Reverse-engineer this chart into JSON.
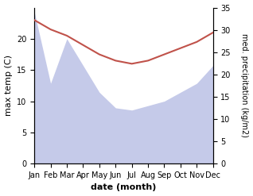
{
  "months": [
    "Jan",
    "Feb",
    "Mar",
    "Apr",
    "May",
    "Jun",
    "Jul",
    "Aug",
    "Sep",
    "Oct",
    "Nov",
    "Dec"
  ],
  "temp": [
    23.0,
    21.5,
    20.5,
    19.0,
    17.5,
    16.5,
    16.0,
    16.5,
    17.5,
    18.5,
    19.5,
    21.0
  ],
  "precip": [
    34.0,
    18.0,
    28.0,
    22.0,
    16.0,
    12.5,
    12.0,
    13.0,
    14.0,
    16.0,
    18.0,
    22.0
  ],
  "temp_color": "#c0524a",
  "precip_color": "#c5cae9",
  "left_ylim": [
    0,
    25
  ],
  "right_ylim": [
    0,
    35
  ],
  "left_yticks": [
    0,
    5,
    10,
    15,
    20
  ],
  "right_yticks": [
    0,
    5,
    10,
    15,
    20,
    25,
    30,
    35
  ],
  "xlabel": "date (month)",
  "ylabel_left": "max temp (C)",
  "ylabel_right": "med. precipitation (kg/m2)",
  "label_fontsize": 8,
  "tick_fontsize": 7
}
